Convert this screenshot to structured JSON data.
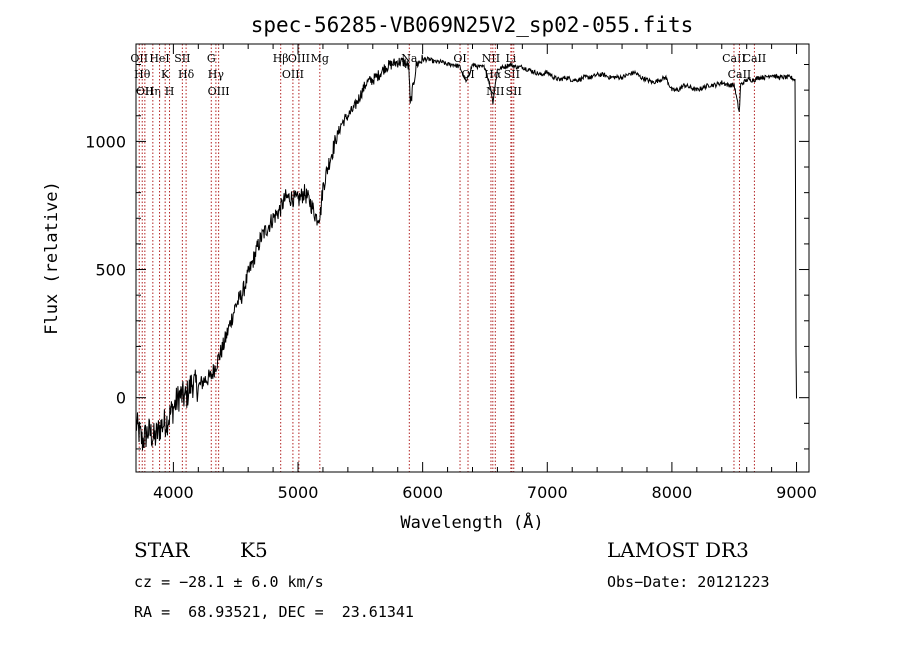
{
  "chart_data": {
    "type": "line",
    "title": "spec-56285-VB069N25V2_sp02-055.fits",
    "xlabel": "Wavelength (Å)",
    "ylabel": "Flux (relative)",
    "xlim": [
      3700,
      9100
    ],
    "ylim": [
      -290,
      1380
    ],
    "xticks": [
      4000,
      5000,
      6000,
      7000,
      8000,
      9000
    ],
    "yticks": [
      0,
      500,
      1000
    ],
    "spectrum": {
      "x": [
        3700,
        3750,
        3800,
        3850,
        3900,
        3950,
        4000,
        4050,
        4100,
        4150,
        4200,
        4250,
        4300,
        4350,
        4400,
        4450,
        4500,
        4550,
        4600,
        4650,
        4700,
        4750,
        4800,
        4850,
        4900,
        4950,
        5000,
        5050,
        5100,
        5150,
        5180,
        5200,
        5250,
        5300,
        5350,
        5400,
        5450,
        5500,
        5550,
        5600,
        5650,
        5700,
        5750,
        5800,
        5850,
        5890,
        5900,
        5950,
        6000,
        6050,
        6100,
        6150,
        6200,
        6250,
        6300,
        6350,
        6400,
        6450,
        6500,
        6550,
        6563,
        6600,
        6650,
        6700,
        6750,
        6800,
        6850,
        6900,
        6950,
        7000,
        7050,
        7100,
        7150,
        7200,
        7250,
        7300,
        7350,
        7400,
        7450,
        7500,
        7550,
        7600,
        7650,
        7700,
        7750,
        7800,
        7850,
        7900,
        7950,
        8000,
        8050,
        8100,
        8150,
        8200,
        8250,
        8300,
        8350,
        8400,
        8450,
        8500,
        8542,
        8550,
        8600,
        8662,
        8700,
        8750,
        8800,
        8850,
        8900,
        8950,
        8990,
        8995,
        9000
      ],
      "y": [
        -100,
        -170,
        -130,
        -160,
        -110,
        -90,
        -40,
        10,
        0,
        60,
        40,
        70,
        80,
        140,
        200,
        280,
        360,
        400,
        480,
        550,
        620,
        660,
        700,
        730,
        780,
        780,
        770,
        800,
        760,
        700,
        720,
        820,
        920,
        1000,
        1070,
        1100,
        1130,
        1180,
        1230,
        1240,
        1260,
        1290,
        1300,
        1310,
        1310,
        1290,
        1140,
        1300,
        1320,
        1320,
        1310,
        1310,
        1300,
        1300,
        1290,
        1230,
        1300,
        1290,
        1290,
        1200,
        1150,
        1280,
        1290,
        1300,
        1290,
        1290,
        1280,
        1270,
        1260,
        1270,
        1250,
        1240,
        1250,
        1240,
        1240,
        1250,
        1250,
        1260,
        1260,
        1250,
        1250,
        1250,
        1260,
        1270,
        1250,
        1240,
        1230,
        1240,
        1250,
        1200,
        1200,
        1220,
        1210,
        1200,
        1210,
        1220,
        1220,
        1230,
        1220,
        1220,
        1110,
        1220,
        1240,
        1240,
        1250,
        1250,
        1260,
        1250,
        1250,
        1250,
        1240,
        220,
        0
      ]
    },
    "line_markers": [
      {
        "wave": 3726,
        "label": "OII"
      },
      {
        "wave": 3750,
        "label": "Hθ"
      },
      {
        "wave": 3771,
        "label": "OII"
      },
      {
        "wave": 3835,
        "label": "Hη"
      },
      {
        "wave": 3889,
        "label": "HeI"
      },
      {
        "wave": 3934,
        "label": "K"
      },
      {
        "wave": 3969,
        "label": "H"
      },
      {
        "wave": 4072,
        "label": "SII"
      },
      {
        "wave": 4102,
        "label": "Hδ"
      },
      {
        "wave": 4304,
        "label": "G"
      },
      {
        "wave": 4341,
        "label": "Hγ"
      },
      {
        "wave": 4363,
        "label": "OIII"
      },
      {
        "wave": 4861,
        "label": "Hβ"
      },
      {
        "wave": 4959,
        "label": "OIII"
      },
      {
        "wave": 5007,
        "label": "OIII"
      },
      {
        "wave": 5175,
        "label": "Mg"
      },
      {
        "wave": 5893,
        "label": "Na"
      },
      {
        "wave": 6300,
        "label": "OI"
      },
      {
        "wave": 6364,
        "label": "OI"
      },
      {
        "wave": 6548,
        "label": "NII"
      },
      {
        "wave": 6563,
        "label": "Hα"
      },
      {
        "wave": 6583,
        "label": "NII"
      },
      {
        "wave": 6708,
        "label": "Li"
      },
      {
        "wave": 6716,
        "label": "SII"
      },
      {
        "wave": 6731,
        "label": "SII"
      },
      {
        "wave": 8498,
        "label": "CaII"
      },
      {
        "wave": 8542,
        "label": "CaII"
      },
      {
        "wave": 8662,
        "label": "CaII"
      }
    ]
  },
  "info": {
    "class_label": "STAR",
    "subclass": "K5",
    "survey": "LAMOST DR3",
    "cz": "cz = −28.1 ± 6.0 km/s",
    "obs_date": "Obs−Date: 20121223",
    "coords": "RA =  68.93521, DEC =  23.61341"
  }
}
